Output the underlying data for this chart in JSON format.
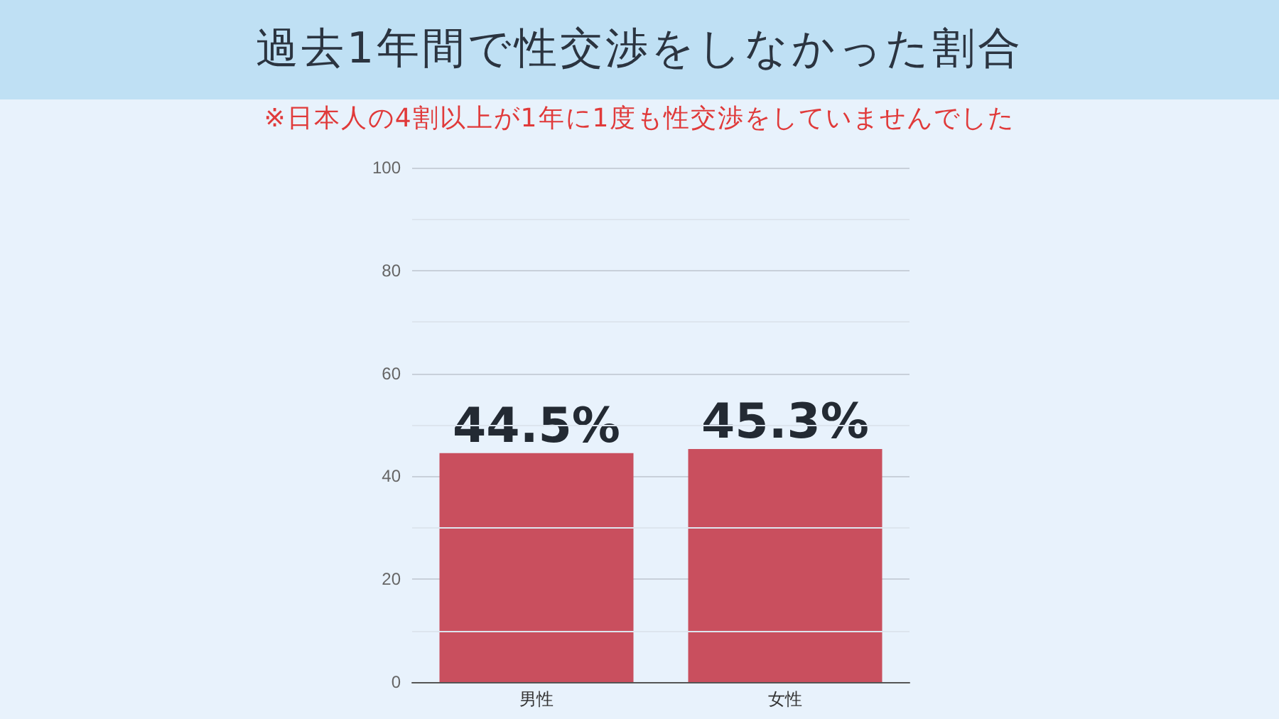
{
  "chart_data": {
    "type": "bar",
    "title": "過去1年間で性交渉をしなかった割合",
    "subtitle": "※日本人の4割以上が1年に1度も性交渉をしていませんでした",
    "categories": [
      "男性",
      "女性"
    ],
    "values": [
      44.5,
      45.3
    ],
    "color": "#c94f5e",
    "value_labels": [
      "44.5%",
      "45.3%"
    ],
    "ylim": [
      0,
      100
    ],
    "yticks": [
      0,
      {
        "value": 10,
        "label": null
      },
      20,
      {
        "value": 30,
        "label": null
      },
      40,
      {
        "value": 50,
        "label": null
      },
      60,
      {
        "value": 70,
        "label": null
      },
      80,
      {
        "value": 90,
        "label": null
      },
      100
    ],
    "grid": "y"
  }
}
